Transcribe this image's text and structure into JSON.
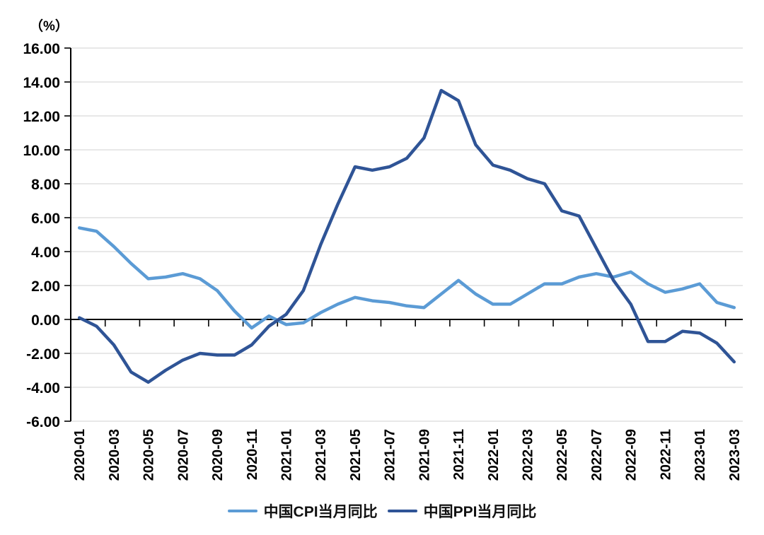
{
  "unit_label": "（%）",
  "chart_data": {
    "type": "line",
    "title": "",
    "ylabel": "（%）",
    "xlabel": "",
    "ylim": [
      -6,
      16
    ],
    "grid": "horizontal",
    "legend_position": "bottom",
    "y_tick_values": [
      16,
      14,
      12,
      10,
      8,
      6,
      4,
      2,
      0,
      -2,
      -4,
      -6
    ],
    "y_tick_labels": [
      "16.00",
      "14.00",
      "12.00",
      "10.00",
      "8.00",
      "6.00",
      "4.00",
      "2.00",
      "0.00",
      "-2.00",
      "-4.00",
      "-6.00"
    ],
    "x": [
      "2020-01",
      "2020-02",
      "2020-03",
      "2020-04",
      "2020-05",
      "2020-06",
      "2020-07",
      "2020-08",
      "2020-09",
      "2020-10",
      "2020-11",
      "2020-12",
      "2021-01",
      "2021-02",
      "2021-03",
      "2021-04",
      "2021-05",
      "2021-06",
      "2021-07",
      "2021-08",
      "2021-09",
      "2021-10",
      "2021-11",
      "2021-12",
      "2022-01",
      "2022-02",
      "2022-03",
      "2022-04",
      "2022-05",
      "2022-06",
      "2022-07",
      "2022-08",
      "2022-09",
      "2022-10",
      "2022-11",
      "2022-12",
      "2023-01",
      "2023-02",
      "2023-03"
    ],
    "x_tick_label_every": 2,
    "x_tick_labels": [
      "2020-01",
      "2020-03",
      "2020-05",
      "2020-07",
      "2020-09",
      "2020-11",
      "2021-01",
      "2021-03",
      "2021-05",
      "2021-07",
      "2021-09",
      "2021-11",
      "2022-01",
      "2022-03",
      "2022-05",
      "2022-07",
      "2022-09",
      "2022-11",
      "2023-01",
      "2023-03"
    ],
    "series": [
      {
        "name": "中国CPI当月同比",
        "color": "#5B9BD5",
        "values": [
          5.4,
          5.2,
          4.3,
          3.3,
          2.4,
          2.5,
          2.7,
          2.4,
          1.7,
          0.5,
          -0.5,
          0.2,
          -0.3,
          -0.2,
          0.4,
          0.9,
          1.3,
          1.1,
          1.0,
          0.8,
          0.7,
          1.5,
          2.3,
          1.5,
          0.9,
          0.9,
          1.5,
          2.1,
          2.1,
          2.5,
          2.7,
          2.5,
          2.8,
          2.1,
          1.6,
          1.8,
          2.1,
          1.0,
          0.7
        ]
      },
      {
        "name": "中国PPI当月同比",
        "color": "#2F5496",
        "values": [
          0.1,
          -0.4,
          -1.5,
          -3.1,
          -3.7,
          -3.0,
          -2.4,
          -2.0,
          -2.1,
          -2.1,
          -1.5,
          -0.4,
          0.3,
          1.7,
          4.4,
          6.8,
          9.0,
          8.8,
          9.0,
          9.5,
          10.7,
          13.5,
          12.9,
          10.3,
          9.1,
          8.8,
          8.3,
          8.0,
          6.4,
          6.1,
          4.2,
          2.3,
          0.9,
          -1.3,
          -1.3,
          -0.7,
          -0.8,
          -1.4,
          -2.5
        ]
      }
    ],
    "colors": {
      "gridline": "#D9D9D9",
      "axis": "#000000",
      "text": "#000000"
    }
  },
  "legend": {
    "items": [
      {
        "label": "中国CPI当月同比",
        "color": "#5B9BD5"
      },
      {
        "label": "中国PPI当月同比",
        "color": "#2F5496"
      }
    ]
  }
}
